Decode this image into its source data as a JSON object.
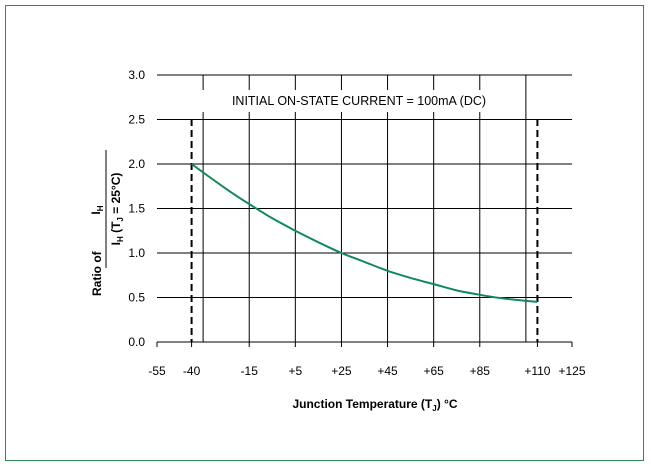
{
  "colors": {
    "frame": "#2e8b57",
    "curve": "#118a5a",
    "grid": "#000000"
  },
  "chart_data": {
    "type": "line",
    "annotation": "INITIAL ON-STATE CURRENT = 100mA (DC)",
    "xlabel": {
      "text": "Junction Temperature (T",
      "sub": "J",
      "suffix": ") °C"
    },
    "ylabel": {
      "prefix": "Ratio of",
      "numerator_main": "I",
      "numerator_sub": "H",
      "denominator_main": "I",
      "denominator_sub": "H",
      "denominator_cond_pre": "(T",
      "denominator_cond_sub": "J",
      "denominator_cond_post": " = 25°C)"
    },
    "x_ticks": [
      {
        "value": -55,
        "label": "-55"
      },
      {
        "value": -40,
        "label": "-40"
      },
      {
        "value": -15,
        "label": "-15"
      },
      {
        "value": 5,
        "label": "+5"
      },
      {
        "value": 25,
        "label": "+25"
      },
      {
        "value": 45,
        "label": "+45"
      },
      {
        "value": 65,
        "label": "+65"
      },
      {
        "value": 85,
        "label": "+85"
      },
      {
        "value": 110,
        "label": "+110"
      },
      {
        "value": 125,
        "label": "+125"
      }
    ],
    "x_gridlines": [
      -35,
      -15,
      5,
      25,
      45,
      65,
      85,
      105
    ],
    "x_dashed": [
      -40,
      110
    ],
    "y_ticks": [
      {
        "value": 0.0,
        "label": "0.0"
      },
      {
        "value": 0.5,
        "label": "0.5"
      },
      {
        "value": 1.0,
        "label": "1.0"
      },
      {
        "value": 1.5,
        "label": "1.5"
      },
      {
        "value": 2.0,
        "label": "2.0"
      },
      {
        "value": 2.5,
        "label": "2.5"
      },
      {
        "value": 3.0,
        "label": "3.0"
      }
    ],
    "xlim": [
      -55,
      125
    ],
    "ylim": [
      0,
      3
    ],
    "series": [
      {
        "x": [
          -40,
          -25,
          -15,
          -5,
          5,
          15,
          25,
          35,
          45,
          55,
          65,
          75,
          85,
          95,
          110
        ],
        "y": [
          2.0,
          1.72,
          1.55,
          1.39,
          1.25,
          1.12,
          1.0,
          0.9,
          0.8,
          0.72,
          0.65,
          0.58,
          0.53,
          0.49,
          0.45
        ]
      }
    ]
  }
}
